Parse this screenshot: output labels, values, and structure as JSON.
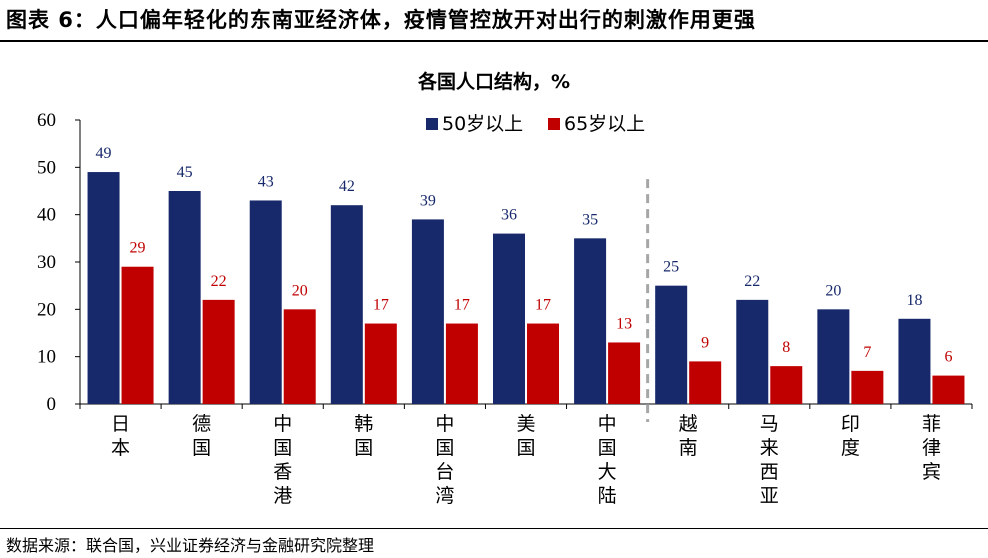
{
  "figure": {
    "title": "图表 6：人口偏年轻化的东南亚经济体，疫情管控放开对出行的刺激作用更强",
    "source": "数据来源：联合国，兴业证券经济与金融研究院整理"
  },
  "colors": {
    "series1": "#17296b",
    "series2": "#c00000",
    "divider": "#a6a6a6"
  },
  "chart_data": {
    "type": "bar",
    "title": "各国人口结构，%",
    "categories": [
      "日本",
      "德国",
      "中国香港",
      "韩国",
      "中国台湾",
      "美国",
      "中国大陆",
      "越南",
      "马来西亚",
      "印度",
      "菲律宾"
    ],
    "series": [
      {
        "name": "50岁以上",
        "values": [
          49,
          45,
          43,
          42,
          39,
          36,
          35,
          25,
          22,
          20,
          18
        ],
        "labels": [
          "49",
          "45",
          "43",
          "42",
          "39",
          "36",
          "35",
          "25",
          "22",
          "20",
          "18"
        ]
      },
      {
        "name": "65岁以上",
        "values": [
          29,
          22,
          20,
          17,
          17,
          17,
          13,
          9,
          8,
          7,
          6
        ],
        "labels": [
          "29",
          "22",
          "20",
          "17",
          "17",
          "17",
          "13",
          "9",
          "8",
          "7",
          "6"
        ]
      }
    ],
    "ylim": [
      0,
      60
    ],
    "yticks": [
      0,
      10,
      20,
      30,
      40,
      50,
      60
    ],
    "divider_after_category": 6,
    "legend_position": "top"
  }
}
